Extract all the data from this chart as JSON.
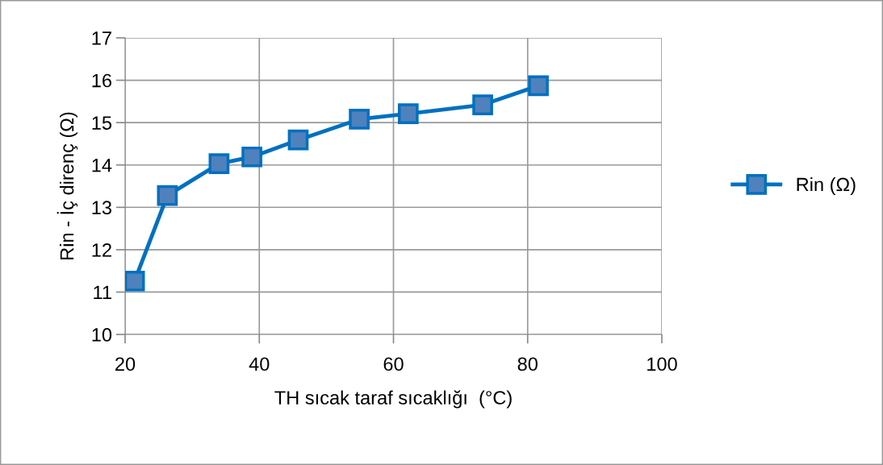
{
  "chart_data": {
    "type": "line",
    "xlabel": "TH sıcak taraf sıcaklığı  (°C)",
    "ylabel": "Rin - İç direnç (Ω)",
    "x": [
      21.4,
      26.3,
      34.0,
      38.9,
      45.8,
      54.9,
      62.2,
      73.3,
      81.6
    ],
    "series": [
      {
        "name": "Rin (Ω)",
        "color": "#0070c0",
        "values": [
          11.26,
          13.28,
          14.03,
          14.19,
          14.59,
          15.08,
          15.21,
          15.42,
          15.87
        ]
      }
    ],
    "xlim": [
      20,
      100
    ],
    "xticks": [
      20,
      40,
      60,
      80,
      100
    ],
    "ylim": [
      10,
      17
    ],
    "yticks": [
      10,
      11,
      12,
      13,
      14,
      15,
      16,
      17
    ],
    "grid": true,
    "legend": "right",
    "marker": "square",
    "line_style": "solid"
  }
}
